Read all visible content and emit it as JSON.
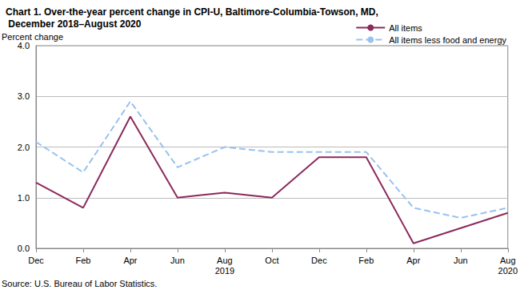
{
  "chart_data": {
    "type": "line",
    "title": "Chart 1. Over-the-year percent change in CPI-U, Baltimore-Columbia-Towson, MD, December 2018–August 2020",
    "y_label": "Percent change",
    "source": "Source: U.S. Bureau of Labor Statistics.",
    "categories": [
      "Dec",
      "Feb",
      "Apr",
      "Jun",
      "Aug\n2019",
      "Oct",
      "Dec",
      "Feb",
      "Apr",
      "Jun",
      "Aug\n2020"
    ],
    "series": [
      {
        "name": "All items",
        "color": "#8c2a5c",
        "line_style": "solid",
        "marker": "none",
        "values": [
          1.3,
          0.8,
          2.6,
          1.0,
          1.1,
          1.0,
          1.8,
          1.8,
          0.1,
          0.4,
          0.7
        ]
      },
      {
        "name": "All items less food and energy",
        "color": "#99c2f0",
        "line_style": "dashed",
        "marker": "none",
        "values": [
          2.1,
          1.5,
          2.9,
          1.6,
          2.0,
          1.9,
          1.9,
          1.9,
          0.8,
          0.6,
          0.8
        ]
      }
    ],
    "ylim": [
      0,
      4
    ],
    "yticks": [
      {
        "value": 0,
        "label": "0.0"
      },
      {
        "value": 1,
        "label": "1.0"
      },
      {
        "value": 2,
        "label": "2.0"
      },
      {
        "value": 3,
        "label": "3.0"
      },
      {
        "value": 4,
        "label": "4.0"
      }
    ],
    "grid": true,
    "legend": "top-right"
  }
}
